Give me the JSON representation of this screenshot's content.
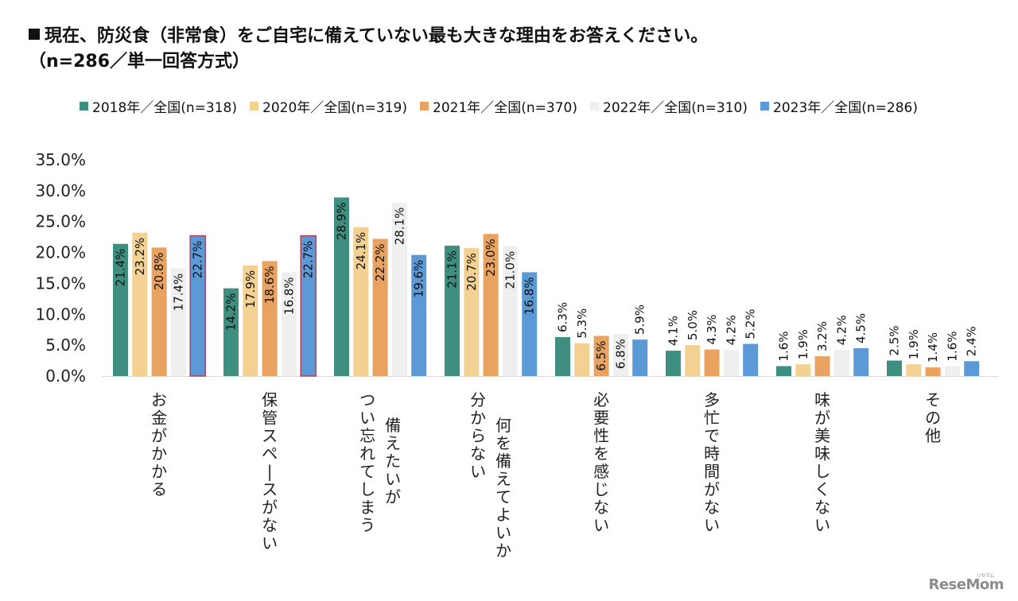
{
  "title": {
    "line1": "現在、防災食（非常食）をご自宅に備えていない最も大きな理由をお答えください。",
    "line2": "（n=286／単一回答方式）"
  },
  "watermark": {
    "text": "ReseMom",
    "kana": "リセマム"
  },
  "chart_data": {
    "type": "bar",
    "title": "現在、防災食（非常食）をご自宅に備えていない最も大きな理由をお答えください。（n=286／単一回答方式）",
    "xlabel": "",
    "ylabel": "",
    "ylim": [
      0,
      35
    ],
    "yticks": [
      "0.0%",
      "5.0%",
      "10.0%",
      "15.0%",
      "20.0%",
      "25.0%",
      "30.0%",
      "35.0%"
    ],
    "grid": false,
    "legend_position": "top",
    "value_format": "percent-1dp",
    "categories": [
      [
        "お金がかかる"
      ],
      [
        "保管スペースがない"
      ],
      [
        "備えたいが",
        "つい忘れてしまう"
      ],
      [
        "何を備えてよいか",
        "分からない"
      ],
      [
        "必要性を感じない"
      ],
      [
        "多忙で時間がない"
      ],
      [
        "味が美味しくない"
      ],
      [
        "その他"
      ]
    ],
    "series": [
      {
        "name": "2018年／全国(n=318)",
        "color": "#3f8f80",
        "values": [
          21.4,
          14.2,
          28.9,
          21.1,
          6.3,
          4.1,
          1.6,
          2.5
        ]
      },
      {
        "name": "2020年／全国(n=319)",
        "color": "#f2d193",
        "values": [
          23.2,
          17.9,
          24.1,
          20.7,
          5.3,
          5.0,
          1.9,
          1.9
        ]
      },
      {
        "name": "2021年／全国(n=370)",
        "color": "#e9a25f",
        "values": [
          20.8,
          18.6,
          22.2,
          23.0,
          6.5,
          4.3,
          3.2,
          1.4
        ]
      },
      {
        "name": "2022年／全国(n=310)",
        "color": "#efefef",
        "values": [
          17.4,
          16.8,
          28.1,
          21.0,
          6.8,
          4.2,
          4.2,
          1.6
        ]
      },
      {
        "name": "2023年／全国(n=286)",
        "color": "#5b9ad6",
        "values": [
          22.7,
          22.7,
          19.6,
          16.8,
          5.9,
          5.2,
          4.5,
          2.4
        ]
      }
    ],
    "highlighted": [
      {
        "series": 4,
        "category": 0,
        "border_color": "#b4405a"
      },
      {
        "series": 4,
        "category": 1,
        "border_color": "#b4405a"
      }
    ]
  }
}
